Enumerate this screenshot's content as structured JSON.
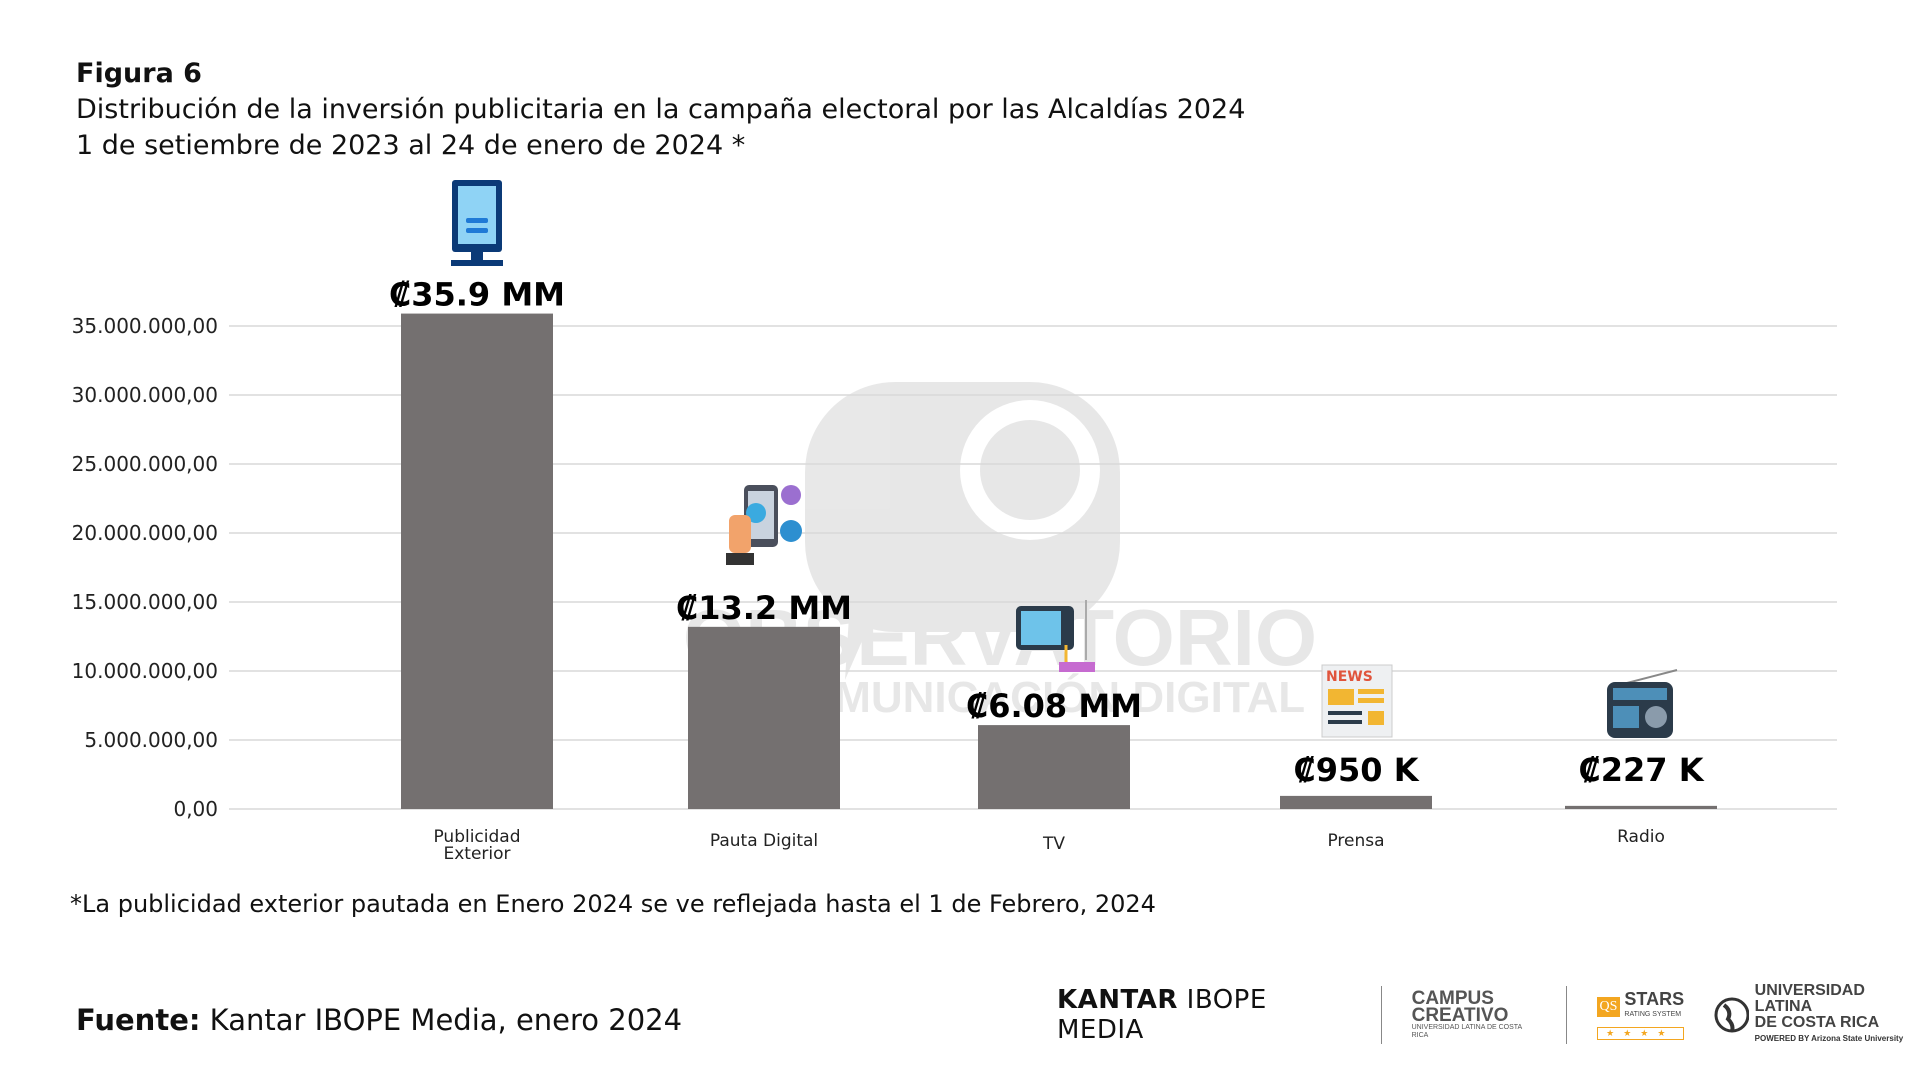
{
  "header": {
    "figure_label": "Figura 6",
    "title": "Distribución de la inversión publicitaria en la campaña electoral por las Alcaldías 2024",
    "subtitle": "1 de setiembre de 2023 al 24 de enero de 2024 *"
  },
  "chart_data": {
    "type": "bar",
    "categories": [
      "Publicidad Exterior",
      "Pauta Digital",
      "TV",
      "Prensa",
      "Radio"
    ],
    "values": [
      35900000,
      13200000,
      6080000,
      950000,
      227000
    ],
    "data_labels": [
      "₡35.9 MM",
      "₡13.2 MM",
      "₡6.08 MM",
      "₡950 K",
      "₡227 K"
    ],
    "category_icons": [
      "billboard-icon",
      "social-media-phone-icon",
      "tv-icon",
      "newspaper-icon",
      "radio-icon"
    ],
    "yticks": [
      0,
      5000000,
      10000000,
      15000000,
      20000000,
      25000000,
      30000000,
      35000000
    ],
    "ytick_labels": [
      "0,00",
      "5.000.000,00",
      "10.000.000,00",
      "15.000.000,00",
      "20.000.000,00",
      "25.000.000,00",
      "30.000.000,00",
      "35.000.000,00"
    ],
    "ylim": [
      0,
      35000000
    ],
    "grid": true,
    "bar_color": "#747070",
    "title": "",
    "xlabel": "",
    "ylabel": ""
  },
  "watermark": {
    "line1": "OBSERVATORIO",
    "line2": "DE COMUNICACIÓN DIGITAL"
  },
  "footnote": "*La publicidad exterior pautada en Enero 2024 se ve reflejada hasta el 1 de Febrero, 2024",
  "source": {
    "label": "Fuente:",
    "text": " Kantar IBOPE Media, enero 2024"
  },
  "logos": {
    "kantar_bold": "KANTAR",
    "kantar_rest": " IBOPE MEDIA",
    "campus": "CAMPUS",
    "creativo": "CREATIVO",
    "campus_sub": "UNIVERSIDAD LATINA DE COSTA RICA",
    "qs_box": "QS",
    "qs_stars": "STARS",
    "qs_rating": "RATING SYSTEM",
    "qs_star_glyphs": "★★★★",
    "ul_line1": "UNIVERSIDAD LATINA",
    "ul_line2": "DE COSTA RICA",
    "ul_powered": "POWERED BY Arizona State University"
  }
}
